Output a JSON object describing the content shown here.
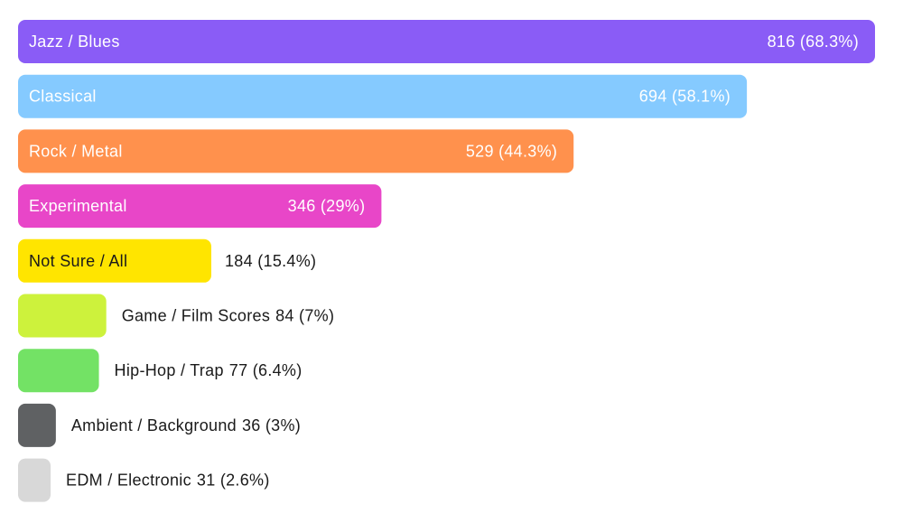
{
  "chart_data": {
    "type": "bar",
    "orientation": "horizontal",
    "categories": [
      "Jazz / Blues",
      "Classical",
      "Rock / Metal",
      "Experimental",
      "Not Sure / All",
      "Game / Film Scores",
      "Hip-Hop / Trap",
      "Ambient / Background",
      "EDM / Electronic"
    ],
    "values": [
      816,
      694,
      529,
      346,
      184,
      84,
      77,
      36,
      31
    ],
    "percent_labels": [
      "68.3%",
      "58.1%",
      "44.3%",
      "29%",
      "15.4%",
      "7%",
      "6.4%",
      "3%",
      "2.6%"
    ],
    "value_labels": [
      "816 (68.3%)",
      "694 (58.1%)",
      "529 (44.3%)",
      "346 (29%)",
      "184 (15.4%)",
      "84 (7%)",
      "77 (6.4%)",
      "36 (3%)",
      "31 (2.6%)"
    ],
    "colors": [
      "#8a5cf6",
      "#85caff",
      "#ff914d",
      "#e846c8",
      "#ffe500",
      "#cdf23c",
      "#73e265",
      "#5f6163",
      "#d8d8d8"
    ],
    "label_colors": [
      "#ffffff",
      "#ffffff",
      "#ffffff",
      "#ffffff",
      "#1a1a1a",
      "#1a1a1a",
      "#1a1a1a",
      "#1a1a1a",
      "#1a1a1a"
    ],
    "title": "",
    "xlabel": "",
    "ylabel": "",
    "xlim": [
      0,
      816
    ],
    "grid": false,
    "legend": "none"
  }
}
